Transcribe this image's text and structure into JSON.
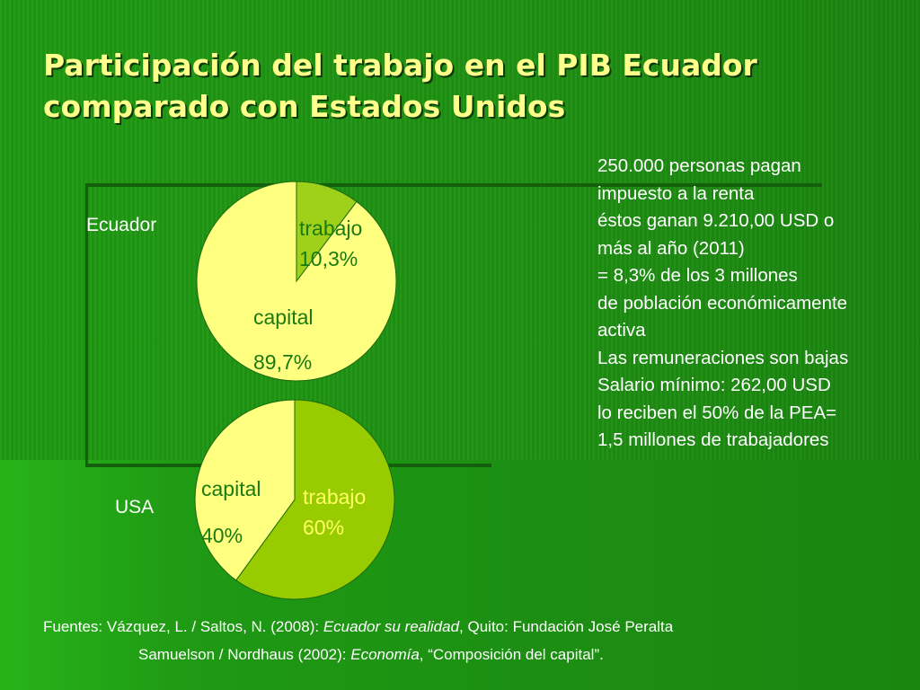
{
  "title_line1": "Participación del trabajo en el PIB Ecuador",
  "title_line2": "comparado con Estados Unidos",
  "side_notes": [
    "250.000 personas pagan",
    "impuesto a la renta",
    "éstos ganan 9.210,00 USD o",
    "más al año (2011)",
    "= 8,3% de los 3 millones",
    "de población económicamente",
    "activa",
    "Las remuneraciones son bajas",
    "Salario mínimo: 262,00 USD",
    "lo reciben el 50% de la PEA=",
    "1,5 millones de trabajadores"
  ],
  "colors": {
    "background": "#1e9012",
    "title": "#ffff8c",
    "capital_slice": "#ffff80",
    "trabajo_slice_ecuador": "#99cc00",
    "trabajo_slice_usa": "#99cc00",
    "label_dark": "#1a7a10",
    "label_yellow": "#ffff66"
  },
  "chart_data": [
    {
      "type": "pie",
      "country_label": "Ecuador",
      "slices": [
        {
          "name": "trabajo",
          "value": 10.3,
          "label": "10,3%"
        },
        {
          "name": "capital",
          "value": 89.7,
          "label": "89,7%"
        }
      ]
    },
    {
      "type": "pie",
      "country_label": "USA",
      "slices": [
        {
          "name": "trabajo",
          "value": 60,
          "label": "60%"
        },
        {
          "name": "capital",
          "value": 40,
          "label": "40%"
        }
      ]
    }
  ],
  "sources": {
    "line1_prefix": "Fuentes: Vázquez, L. / Saltos, N. (2008): ",
    "line1_title": "Ecuador su realidad",
    "line1_suffix": ", Quito: Fundación José Peralta",
    "line2_prefix": "Samuelson  / Nordhaus (2002): ",
    "line2_title": "Economía",
    "line2_suffix": ", “Composición del capital”."
  }
}
